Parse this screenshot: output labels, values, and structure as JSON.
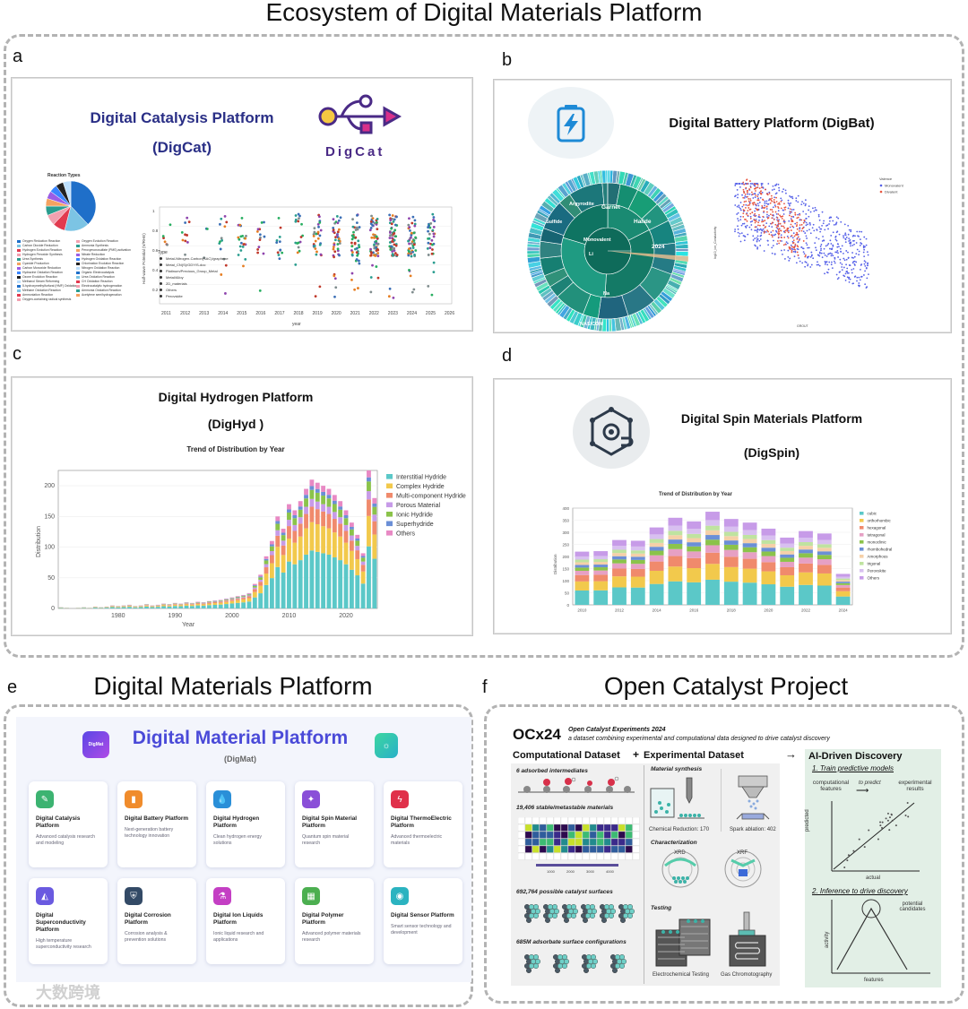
{
  "main_title": "Ecosystem of Digital Materials Platform",
  "panels": {
    "a": {
      "letter": "a",
      "title_line1": "Digital Catalysis Platform",
      "title_line2": "(DigCat)",
      "logo_text": "DigCat",
      "pie_title": "Reaction Types",
      "pie_colors": [
        "#1f6fc9",
        "#7cc4e4",
        "#e23a4f",
        "#f2a1b0",
        "#2a9d8f",
        "#f4a261",
        "#9b5de5",
        "#3a86ff",
        "#222222",
        "#bde0fe"
      ],
      "pie_legend_left": [
        "Oxygen Reduction Reaction",
        "Carbon Dioxide Reduction",
        "Hydrogen Evolution Reaction",
        "Hydrogen Peroxide Synthesis",
        "Urea Synthesis",
        "Cyanide Production",
        "Carbon Monoxide Reduction",
        "Hydrazine Oxidation Reaction",
        "Ozone Evolution Reaction",
        "Methanol Steam Reforming",
        "5-hydroxymethylfurfural (HMF) Oxidation",
        "Methane Oxidation Reaction",
        "Ammoniation Reaction",
        "Oxygen-containing radical synthesis"
      ],
      "pie_legend_right": [
        "Oxygen Evolution Reaction",
        "Ammonia Synthesis",
        "Peroxymonosulfate (PMS) activation",
        "Nitrate Reduction",
        "Hydrogen Oxidation Reaction",
        "Chlorination Evolution Reaction",
        "Nitrogen Oxidation Reaction",
        "Organic Electrocatalysis",
        "Urea Oxidation Reaction",
        "CH Oxidation Reaction",
        "Electrocatalytic hydrogenation",
        "Ammonia Oxidation Reaction",
        "Acetylene semihydrogenation"
      ],
      "scatter_ylabel": "Half-wave Potential (V/RHE)",
      "scatter_xlabel": "year",
      "scatter_years": [
        "2011",
        "2012",
        "2013",
        "2014",
        "2015",
        "2016",
        "2017",
        "2018",
        "2019",
        "2020",
        "2021",
        "2022",
        "2023",
        "2024",
        "2025",
        "2026"
      ],
      "scatter_type_label": "Type",
      "scatter_types": [
        "Metal-Nitrogen-Carbon(SAC)/graphene",
        "Metal_CN(S)/GDY/S-doc",
        "Platinum/Precious_Group_Metal",
        "Metal/Alloy",
        "2D_materials",
        "Others",
        "Perovskite"
      ]
    },
    "b": {
      "letter": "b",
      "title": "Digital Battery Platform (DigBat)",
      "sunburst_labels": [
        "Garnet",
        "Halide",
        "2024",
        "Na",
        "Li",
        "Monovalent",
        "NASICON",
        "Argyrodite",
        "Sulfide"
      ],
      "scatter_legend_title": "Valence",
      "scatter_legend": [
        "Monovalent",
        "Divalent"
      ],
      "scatter_colors": [
        "#5560e8",
        "#e8553f"
      ],
      "scatter_ylabel": "log10_ion_Conductivity",
      "scatter_xlabel": "GROUT"
    },
    "c": {
      "letter": "c",
      "title_line1": "Digital Hydrogen Platform",
      "title_line2": "(DigHyd )",
      "chart_title": "Trend of Distribution by Year"
    },
    "d": {
      "letter": "d",
      "title_line1": "Digital Spin Materials Platform",
      "title_line2": "(DigSpin)",
      "chart_title": "Trend of Distribution by Year"
    },
    "e": {
      "letter": "e",
      "section_title": "Digital Materials Platform",
      "banner_title": "Digital Material Platform",
      "banner_subtitle": "(DigMat)",
      "logo_text": "DigMat",
      "cards": [
        {
          "name": "Digital Catalysis Platform",
          "desc": "Advanced catalysis research and modeling",
          "color": "#3cb371",
          "icon": "✎"
        },
        {
          "name": "Digital Battery Platform",
          "desc": "Next-generation battery technology innovation",
          "color": "#f08c2c",
          "icon": "▮"
        },
        {
          "name": "Digital Hydrogen Platform",
          "desc": "Clean hydrogen energy solutions",
          "color": "#2a8fd8",
          "icon": "💧"
        },
        {
          "name": "Digital Spin Material Platform",
          "desc": "Quantum spin material research",
          "color": "#8a4fd8",
          "icon": "✦"
        },
        {
          "name": "Digital ThermoElectric Platform",
          "desc": "Advanced thermoelectric materials",
          "color": "#e0304a",
          "icon": "ϟ"
        },
        {
          "name": "Digital Superconductivity Platform",
          "desc": "High temperature superconductivity research",
          "color": "#6a5ae0",
          "icon": "◭"
        },
        {
          "name": "Digital Corrosion Platform",
          "desc": "Corrosion analysis & prevention solutions",
          "color": "#334a66",
          "icon": "⛨"
        },
        {
          "name": "Digital Ion Liquids Platform",
          "desc": "Ionic liquid research and applications",
          "color": "#c43fc4",
          "icon": "⚗"
        },
        {
          "name": "Digital Polymer Platform",
          "desc": "Advanced polymer materials research",
          "color": "#4caf50",
          "icon": "▦"
        },
        {
          "name": "Digital Sensor Platform",
          "desc": "Smart sensor technology and development",
          "color": "#2bb3c0",
          "icon": "◉"
        }
      ]
    },
    "f": {
      "letter": "f",
      "section_title": "Open Catalyst Project",
      "ocx_title": "OCx24",
      "ocx_subtitle": "Open Catalyst Experiments 2024",
      "ocx_desc": "a dataset combining experimental and computational data designed to drive catalyst discovery",
      "comp_header": "Computational Dataset",
      "plus": "+",
      "exp_header": "Experimental Dataset",
      "ai_header": "AI-Driven Discovery",
      "comp_items": [
        "6 adsorbed intermediates",
        "19,406 stable/metastable materials",
        "692,764 possible catalyst surfaces",
        "685M adsorbate surface configurations"
      ],
      "heat_ticks": [
        "1000",
        "2000",
        "3000",
        "4000"
      ],
      "exp_sections": [
        "Material synthesis",
        "Characterization",
        "Testing"
      ],
      "exp_labels": [
        "Chemical Reduction: 170",
        "Spark ablation: 402",
        "XRD",
        "XRF",
        "Electrochemical Testing",
        "Gas Chromotography"
      ],
      "ai_step1": "1. Train predictive models",
      "ai_comp": "computational features",
      "ai_predict": "to predict",
      "ai_exp": "experimental results",
      "ai_pred_axis": "predicted",
      "ai_act_axis": "actual",
      "ai_step2": "2. Inference to drive discovery",
      "ai_candidates": "potential candidates",
      "ai_activity": "activity",
      "ai_features": "features"
    }
  },
  "watermark": "大数跨境",
  "chart_data": [
    {
      "type": "bar",
      "stacked": true,
      "title": "Trend of Distribution by Year",
      "xlabel": "Year",
      "ylabel": "Distribution",
      "ylim": [
        0,
        225
      ],
      "xticks": [
        "1980",
        "1990",
        "2000",
        "2010",
        "2020"
      ],
      "yticks": [
        "0",
        "50",
        "100",
        "150",
        "200"
      ],
      "series_names": [
        "Interstitial Hydride",
        "Complex Hydride",
        "Multi-component Hydride",
        "Porous Material",
        "Ionic Hydride",
        "Superhydride",
        "Others"
      ],
      "colors": [
        "#5bc8c8",
        "#f2c94c",
        "#f08a6c",
        "#c79be8",
        "#8bc34a",
        "#6b8fd6",
        "#e889c4"
      ],
      "categories": [
        "1970",
        "1971",
        "1972",
        "1973",
        "1974",
        "1975",
        "1976",
        "1977",
        "1978",
        "1979",
        "1980",
        "1981",
        "1982",
        "1983",
        "1984",
        "1985",
        "1986",
        "1987",
        "1988",
        "1989",
        "1990",
        "1991",
        "1992",
        "1993",
        "1994",
        "1995",
        "1996",
        "1997",
        "1998",
        "1999",
        "2000",
        "2001",
        "2002",
        "2003",
        "2004",
        "2005",
        "2006",
        "2007",
        "2008",
        "2009",
        "2010",
        "2011",
        "2012",
        "2013",
        "2014",
        "2015",
        "2016",
        "2017",
        "2018",
        "2019",
        "2020",
        "2021",
        "2022",
        "2023",
        "2024",
        "2025"
      ],
      "totals": [
        2,
        1,
        0,
        1,
        2,
        1,
        3,
        2,
        3,
        5,
        4,
        5,
        6,
        4,
        5,
        7,
        5,
        6,
        8,
        7,
        9,
        8,
        10,
        9,
        11,
        10,
        12,
        13,
        14,
        16,
        18,
        20,
        22,
        25,
        40,
        55,
        85,
        110,
        150,
        130,
        170,
        160,
        175,
        195,
        210,
        205,
        200,
        195,
        185,
        175,
        160,
        140,
        120,
        90,
        225,
        180
      ]
    },
    {
      "type": "bar",
      "stacked": true,
      "title": "Trend of Distribution by Year",
      "xlabel": "",
      "ylabel": "Distribution",
      "ylim": [
        0,
        400
      ],
      "xticks": [
        "2010",
        "2012",
        "2014",
        "2016",
        "2018",
        "2020",
        "2022",
        "2024"
      ],
      "yticks": [
        "0",
        "50",
        "100",
        "150",
        "200",
        "250",
        "300",
        "350",
        "400"
      ],
      "series_names": [
        "cubic",
        "orthorhombic",
        "hexagonal",
        "tetragonal",
        "monoclinic",
        "rhombohedral",
        "Amorphous",
        "trigonal",
        "Perovskite",
        "Others"
      ],
      "colors": [
        "#5bc8c8",
        "#f2c94c",
        "#f08a6c",
        "#e6a0c4",
        "#8bc34a",
        "#6b8fd6",
        "#f5d0a8",
        "#bfe3a0",
        "#d8c0f0",
        "#c79be8"
      ],
      "categories": [
        "2010",
        "2011",
        "2012",
        "2013",
        "2014",
        "2015",
        "2016",
        "2017",
        "2018",
        "2019",
        "2020",
        "2021",
        "2022",
        "2023",
        "2024"
      ],
      "totals": [
        220,
        222,
        268,
        265,
        320,
        360,
        345,
        385,
        355,
        340,
        315,
        278,
        305,
        295,
        128
      ]
    }
  ]
}
